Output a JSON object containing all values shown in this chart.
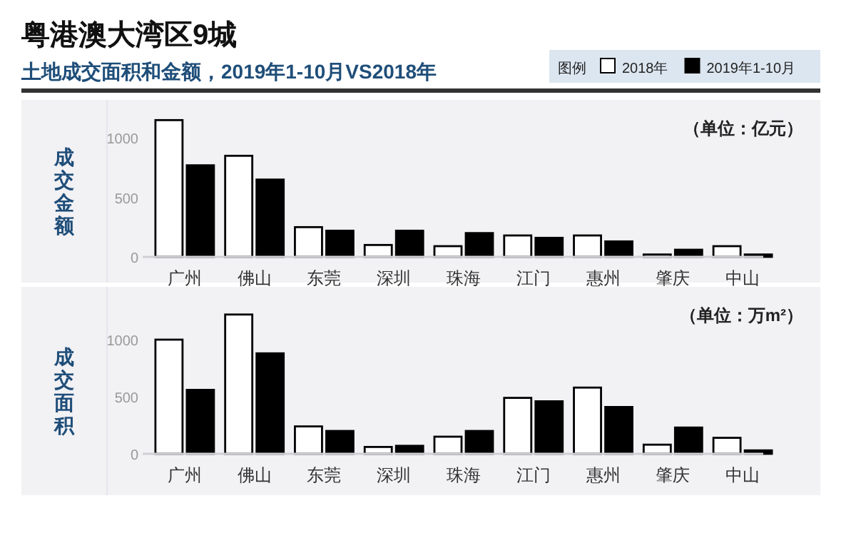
{
  "chart_data": [
    {
      "type": "bar",
      "title": "粤港澳大湾区9城",
      "subtitle": "土地成交面积和金额，2019年1-10月VS2018年",
      "ylabel": "成交金额",
      "legend_title": "图例",
      "legend": "top right",
      "annotations": [
        "（单位：亿元）"
      ],
      "categories": [
        "广州",
        "佛山",
        "东莞",
        "深圳",
        "珠海",
        "江门",
        "惠州",
        "肇庆",
        "中山"
      ],
      "series": [
        {
          "name": "2018年",
          "color": "#ffffff",
          "values": [
            1150,
            850,
            250,
            100,
            90,
            180,
            180,
            20,
            90
          ]
        },
        {
          "name": "2019年1-10月",
          "color": "#000000",
          "values": [
            770,
            650,
            220,
            220,
            200,
            160,
            130,
            60,
            20
          ]
        }
      ],
      "ylim": [
        0,
        1200
      ],
      "yticks": [
        0,
        500,
        1000
      ],
      "grid": false
    },
    {
      "type": "bar",
      "ylabel": "成交面积",
      "annotations": [
        "（单位：万m²）"
      ],
      "categories": [
        "广州",
        "佛山",
        "东莞",
        "深圳",
        "珠海",
        "江门",
        "惠州",
        "肇庆",
        "中山"
      ],
      "series": [
        {
          "color": "#ffffff",
          "values": [
            1000,
            1220,
            240,
            60,
            150,
            490,
            580,
            80,
            140
          ]
        },
        {
          "color": "#000000",
          "values": [
            560,
            880,
            200,
            70,
            200,
            460,
            410,
            230,
            30
          ]
        }
      ],
      "ylim": [
        0,
        1250
      ],
      "yticks": [
        0,
        500,
        1000
      ],
      "grid": false
    }
  ]
}
